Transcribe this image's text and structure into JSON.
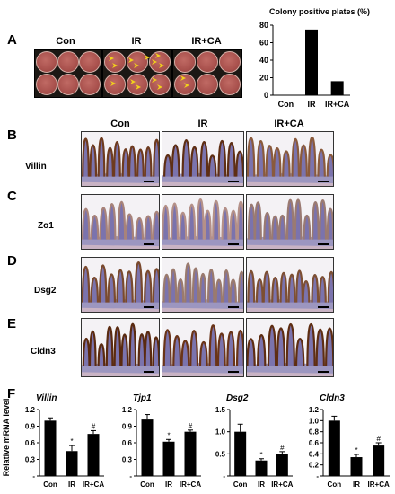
{
  "panels": {
    "A": "A",
    "B": "B",
    "C": "C",
    "D": "D",
    "E": "E",
    "F": "F"
  },
  "plate_groups": [
    "Con",
    "IR",
    "IR+CA"
  ],
  "colony_chart": {
    "title": "Colony positive plates  (%)",
    "type": "bar",
    "categories": [
      "Con",
      "IR",
      "IR+CA"
    ],
    "values": [
      0,
      75,
      16
    ],
    "yticks": [
      0,
      20,
      40,
      60,
      80
    ],
    "ylim": [
      0,
      80
    ]
  },
  "histology": {
    "columns": [
      "Con",
      "IR",
      "IR+CA"
    ],
    "rows": [
      "Villin",
      "Zo1",
      "Dsg2",
      "Cldn3"
    ]
  },
  "chart_data": [
    {
      "type": "bar",
      "title": "Villin",
      "ylabel": "Relative mRNA level",
      "categories": [
        "Con",
        "IR",
        "IR+CA"
      ],
      "values": [
        1.0,
        0.45,
        0.76
      ],
      "errors": [
        0.05,
        0.1,
        0.06
      ],
      "significance": [
        "",
        "*",
        "#"
      ],
      "yticks": [
        "1.2",
        "0.9",
        "0.6",
        "0.3",
        "-"
      ],
      "ylim": [
        0,
        1.2
      ]
    },
    {
      "type": "bar",
      "title": "Tjp1",
      "ylabel": "",
      "categories": [
        "Con",
        "IR",
        "IR+CA"
      ],
      "values": [
        1.02,
        0.62,
        0.8
      ],
      "errors": [
        0.09,
        0.04,
        0.03
      ],
      "significance": [
        "",
        "*",
        "#"
      ],
      "yticks": [
        "1.2",
        "0.9",
        "0.6",
        "0.3",
        "-"
      ],
      "ylim": [
        0,
        1.2
      ]
    },
    {
      "type": "bar",
      "title": "Dsg2",
      "ylabel": "",
      "categories": [
        "Con",
        "IR",
        "IR+CA"
      ],
      "values": [
        1.0,
        0.35,
        0.5
      ],
      "errors": [
        0.17,
        0.04,
        0.05
      ],
      "significance": [
        "",
        "*",
        "#"
      ],
      "yticks": [
        "1.5",
        "1.0",
        "0.5",
        "-"
      ],
      "ylim": [
        0,
        1.5
      ]
    },
    {
      "type": "bar",
      "title": "Cldn3",
      "ylabel": "",
      "categories": [
        "Con",
        "IR",
        "IR+CA"
      ],
      "values": [
        1.0,
        0.34,
        0.55
      ],
      "errors": [
        0.08,
        0.05,
        0.05
      ],
      "significance": [
        "",
        "*",
        "#"
      ],
      "yticks": [
        "1.2",
        "1.0",
        "0.8",
        "0.6",
        "0.4",
        "0.2",
        "-"
      ],
      "ylim": [
        0,
        1.2
      ]
    }
  ]
}
